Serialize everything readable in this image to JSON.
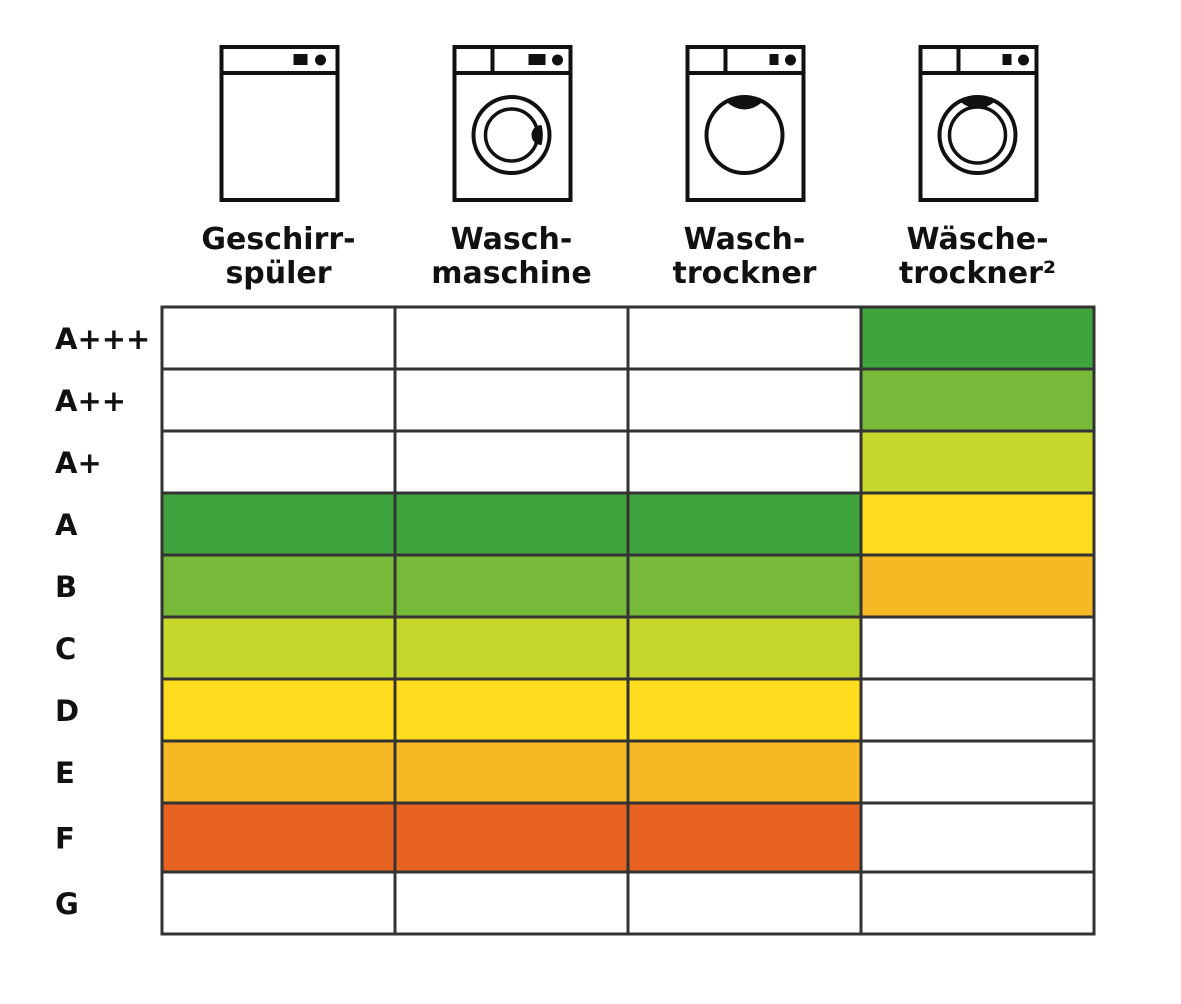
{
  "chart_data": {
    "type": "table",
    "columns": [
      {
        "label_lines": [
          "Geschirr-",
          "spüler"
        ],
        "icon": "dishwasher-icon"
      },
      {
        "label_lines": [
          "Wasch-",
          "maschine"
        ],
        "icon": "washing-machine-icon"
      },
      {
        "label_lines": [
          "Wasch-",
          "trockner"
        ],
        "icon": "washer-dryer-icon"
      },
      {
        "label_lines": [
          "Wäsche-",
          "trockner²"
        ],
        "icon": "tumble-dryer-icon"
      }
    ],
    "rows": [
      "A+++",
      "A++",
      "A+",
      "A",
      "B",
      "C",
      "D",
      "E",
      "F",
      "G"
    ],
    "colors": {
      "A+++": "#3fa43e",
      "A++": "#77ba3a",
      "A+": "#c6d72c",
      "A": "#3fa43e",
      "B": "#77ba3a",
      "C": "#c6d72c",
      "D": "#fedd1e",
      "E": "#f6b926",
      "F": "#e86322",
      "empty": "#ffffff",
      "grid": "#333333"
    },
    "cells": [
      [
        "empty",
        "empty",
        "empty",
        "dark-green"
      ],
      [
        "empty",
        "empty",
        "empty",
        "green"
      ],
      [
        "empty",
        "empty",
        "empty",
        "light-green"
      ],
      [
        "dark-green",
        "dark-green",
        "dark-green",
        "yellow"
      ],
      [
        "green",
        "green",
        "green",
        "orange-yellow"
      ],
      [
        "light-green",
        "light-green",
        "light-green",
        "empty"
      ],
      [
        "yellow",
        "yellow",
        "yellow",
        "empty"
      ],
      [
        "orange-yellow",
        "orange-yellow",
        "orange-yellow",
        "empty"
      ],
      [
        "orange",
        "orange",
        "orange",
        "empty"
      ],
      [
        "empty",
        "empty",
        "empty",
        "empty"
      ]
    ],
    "palette": {
      "dark-green": "#3fa43e",
      "green": "#77ba3a",
      "light-green": "#c6d72c",
      "yellow": "#fedd1e",
      "orange-yellow": "#f6b926",
      "orange": "#e86322",
      "empty": "#ffffff"
    }
  }
}
